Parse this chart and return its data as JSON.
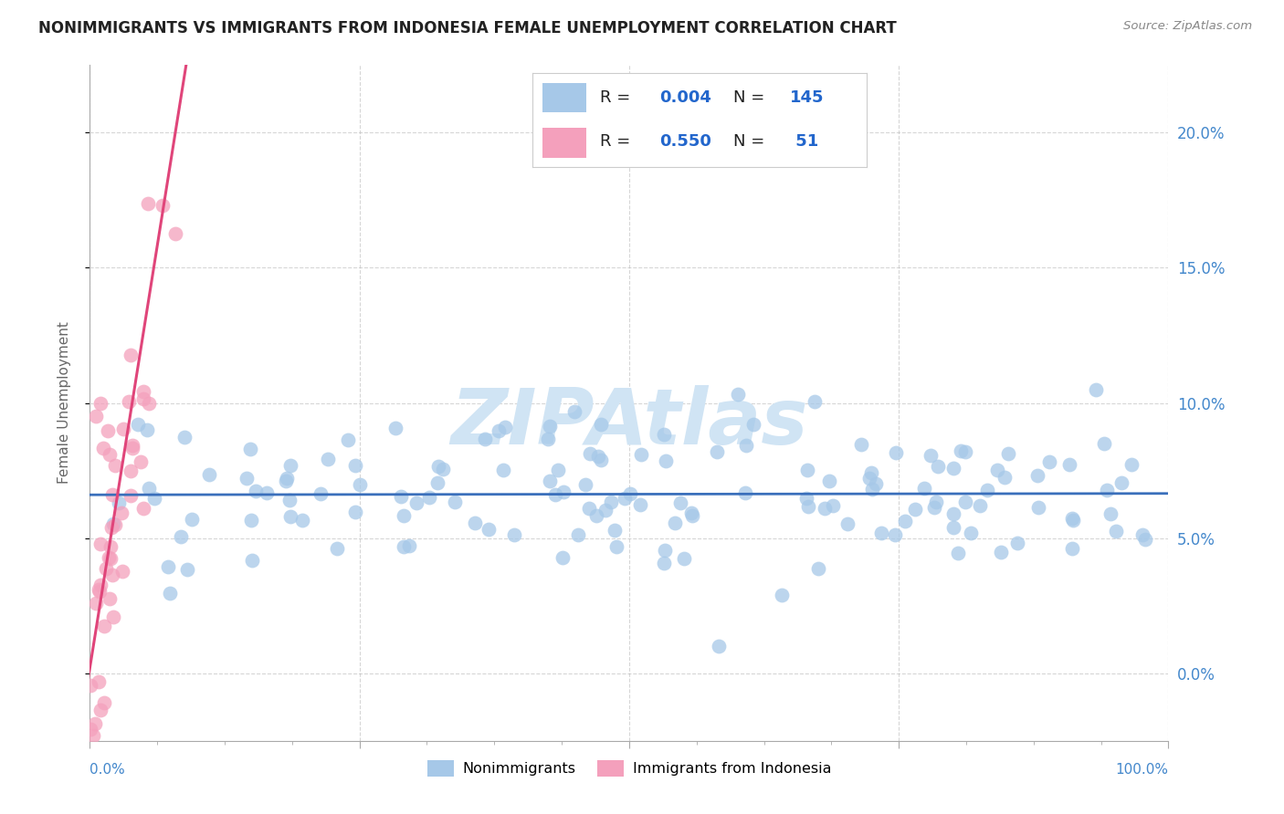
{
  "title": "NONIMMIGRANTS VS IMMIGRANTS FROM INDONESIA FEMALE UNEMPLOYMENT CORRELATION CHART",
  "source": "Source: ZipAtlas.com",
  "ylabel": "Female Unemployment",
  "xlim": [
    0.0,
    1.0
  ],
  "ylim": [
    -0.025,
    0.225
  ],
  "yticks": [
    0.0,
    0.05,
    0.1,
    0.15,
    0.2
  ],
  "ytick_labels": [
    "0.0%",
    "5.0%",
    "10.0%",
    "15.0%",
    "20.0%"
  ],
  "color_blue": "#a6c8e8",
  "color_pink": "#f4a0bc",
  "line_blue": "#3a6fbb",
  "line_pink": "#e0457a",
  "watermark": "ZIPAtlas",
  "watermark_color": "#d0e4f4",
  "background_color": "#ffffff",
  "grid_color": "#bbbbbb",
  "blue_intercept": 0.066,
  "blue_slope": 0.0005,
  "pink_intercept": 0.002,
  "pink_slope": 2.5,
  "nonimm_N": 145,
  "imm_N": 51,
  "title_fontsize": 12,
  "axis_fontsize": 11,
  "legend_fontsize": 13
}
